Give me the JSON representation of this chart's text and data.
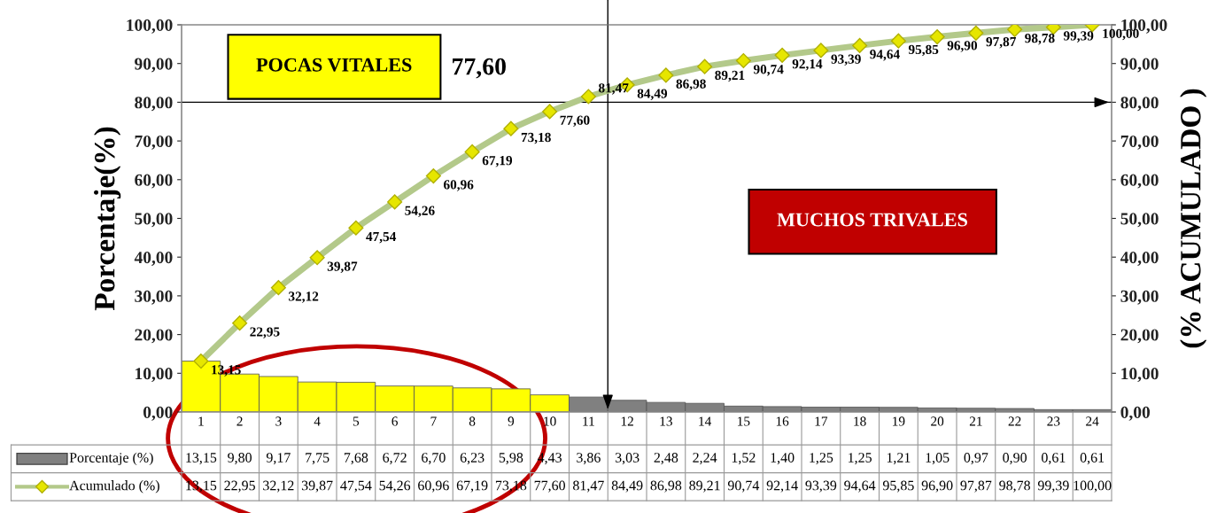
{
  "chart_data": {
    "type": "bar",
    "categories": [
      "1",
      "2",
      "3",
      "4",
      "5",
      "6",
      "7",
      "8",
      "9",
      "10",
      "11",
      "12",
      "13",
      "14",
      "15",
      "16",
      "17",
      "18",
      "19",
      "20",
      "21",
      "22",
      "23",
      "24"
    ],
    "ylabel": "Porcentaje(%)",
    "y2label": "(% ACUMULADO )",
    "series": [
      {
        "name": "Porcentaje (%)",
        "colors": [
          "#ffff00",
          "#ffff00",
          "#ffff00",
          "#ffff00",
          "#ffff00",
          "#ffff00",
          "#ffff00",
          "#ffff00",
          "#ffff00",
          "#ffff00",
          "#808080",
          "#808080",
          "#808080",
          "#808080",
          "#808080",
          "#808080",
          "#808080",
          "#808080",
          "#808080",
          "#808080",
          "#808080",
          "#808080",
          "#808080",
          "#808080"
        ],
        "values": [
          13.15,
          9.8,
          9.17,
          7.75,
          7.68,
          6.72,
          6.7,
          6.23,
          5.98,
          4.43,
          3.86,
          3.03,
          2.48,
          2.24,
          1.52,
          1.4,
          1.25,
          1.25,
          1.21,
          1.05,
          0.97,
          0.9,
          0.61,
          0.61
        ],
        "value_labels": [
          "13,15",
          "9,80",
          "9,17",
          "7,75",
          "7,68",
          "6,72",
          "6,70",
          "6,23",
          "5,98",
          "4,43",
          "3,86",
          "3,03",
          "2,48",
          "2,24",
          "1,52",
          "1,40",
          "1,25",
          "1,25",
          "1,21",
          "1,05",
          "0,97",
          "0,90",
          "0,61",
          "0,61"
        ]
      },
      {
        "name": "Acumulado (%)",
        "type": "line",
        "axis": "y2",
        "color": "#b3c98a",
        "marker": "diamond",
        "values": [
          13.15,
          22.95,
          32.12,
          39.87,
          47.54,
          54.26,
          60.96,
          67.19,
          73.18,
          77.6,
          81.47,
          84.49,
          86.98,
          89.21,
          90.74,
          92.14,
          93.39,
          94.64,
          95.85,
          96.9,
          97.87,
          98.78,
          99.39,
          100.0
        ],
        "value_labels": [
          "13,15",
          "22,95",
          "32,12",
          "39,87",
          "47,54",
          "54,26",
          "60,96",
          "67,19",
          "73,18",
          "77,60",
          "81,47",
          "84,49",
          "86,98",
          "89,21",
          "90,74",
          "92,14",
          "93,39",
          "94,64",
          "95,85",
          "96,90",
          "97,87",
          "98,78",
          "99,39",
          "100,00"
        ]
      }
    ],
    "ylim": [
      0,
      100
    ],
    "yticks": [
      {
        "value": 0,
        "label": "0,00"
      },
      {
        "value": 10,
        "label": "10,00"
      },
      {
        "value": 20,
        "label": "20,00"
      },
      {
        "value": 30,
        "label": "30,00"
      },
      {
        "value": 40,
        "label": "40,00"
      },
      {
        "value": 50,
        "label": "50,00"
      },
      {
        "value": 60,
        "label": "60,00"
      },
      {
        "value": 70,
        "label": "70,00"
      },
      {
        "value": 80,
        "label": "80,00"
      },
      {
        "value": 90,
        "label": "90,00"
      },
      {
        "value": 100,
        "label": "100,00"
      }
    ],
    "y2lim": [
      0,
      100
    ],
    "y2ticks": [
      {
        "value": 0,
        "label": "0,00"
      },
      {
        "value": 10,
        "label": "10,00"
      },
      {
        "value": 20,
        "label": "20,00"
      },
      {
        "value": 30,
        "label": "30,00"
      },
      {
        "value": 40,
        "label": "40,00"
      },
      {
        "value": 50,
        "label": "50,00"
      },
      {
        "value": 60,
        "label": "60,00"
      },
      {
        "value": 70,
        "label": "70,00"
      },
      {
        "value": 80,
        "label": "80,00"
      },
      {
        "value": 90,
        "label": "90,00"
      },
      {
        "value": 100,
        "label": "100,00"
      }
    ],
    "ref_lines": [
      {
        "axis": "y",
        "value": 80,
        "color": "#000000"
      }
    ],
    "annotations": [
      "POCAS VITALES",
      "MUCHOS TRIVALES",
      {
        "text": "77,60",
        "x": "10",
        "y": 77.6
      }
    ],
    "data_labels": true,
    "legend": "bottom",
    "grid": false
  }
}
